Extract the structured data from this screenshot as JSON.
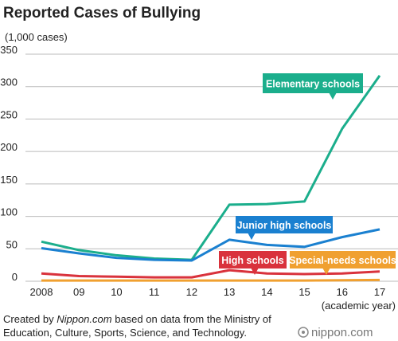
{
  "chart_data": {
    "type": "line",
    "title": "Reported Cases of Bullying",
    "y_unit": "(1,000 cases)",
    "x_label": "(academic year)",
    "categories": [
      "2008",
      "09",
      "10",
      "11",
      "12",
      "13",
      "14",
      "15",
      "16",
      "17"
    ],
    "series": [
      {
        "name": "Elementary schools",
        "color": "#1bae8c",
        "values": [
          61,
          48,
          40,
          35,
          33,
          118,
          119,
          123,
          235,
          317
        ]
      },
      {
        "name": "Junior high schools",
        "color": "#1a80d0",
        "values": [
          51,
          43,
          36,
          33,
          32,
          64,
          56,
          53,
          68,
          80
        ]
      },
      {
        "name": "High schools",
        "color": "#d9323c",
        "values": [
          12,
          8,
          7,
          6,
          6,
          17,
          12,
          11,
          12,
          15
        ]
      },
      {
        "name": "Special-needs schools",
        "color": "#f0a030",
        "values": [
          1,
          1,
          1,
          1,
          1,
          1,
          1,
          1,
          1.5,
          2
        ]
      }
    ],
    "ylim": [
      0,
      350
    ],
    "yticks": [
      0,
      50,
      100,
      150,
      200,
      250,
      300,
      350
    ],
    "grid": true,
    "source": {
      "prefix": "Created by",
      "italic": "Nippon.com",
      "lines": [
        "based on data from the Ministry of",
        "Education, Culture, Sports, Science, and Technology."
      ]
    },
    "logo": "nippon.com"
  }
}
